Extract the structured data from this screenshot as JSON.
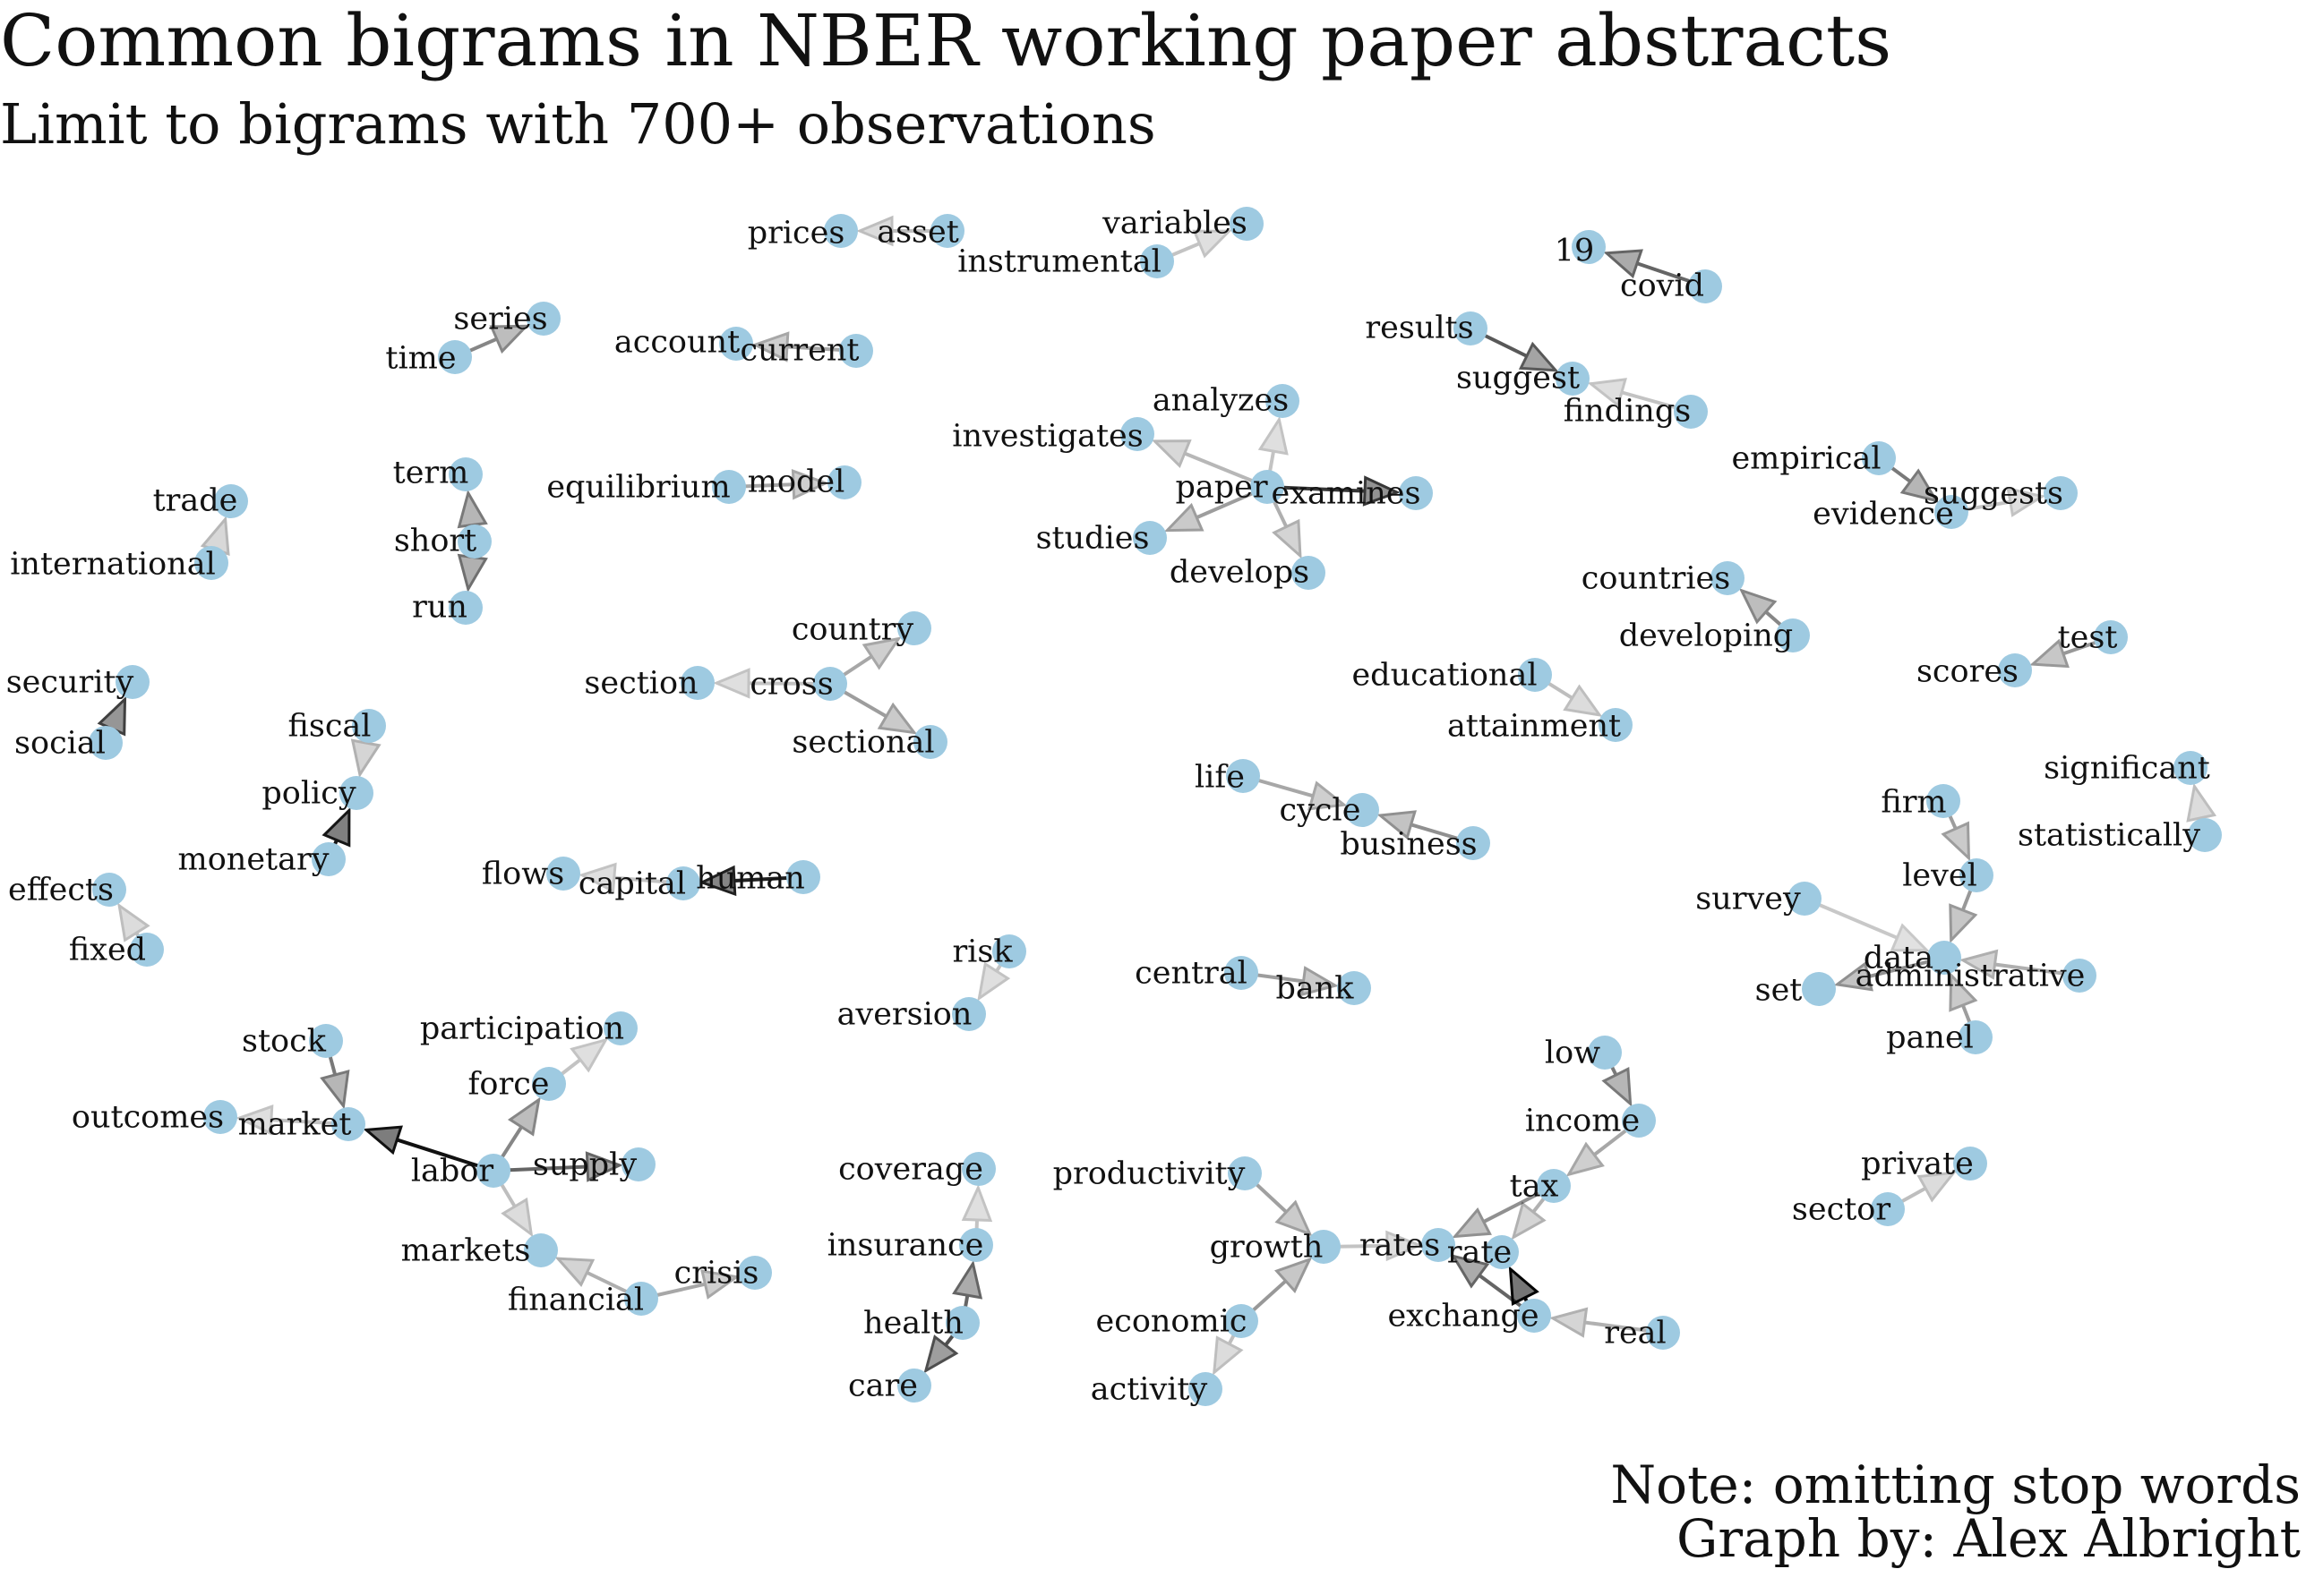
{
  "title": "Common bigrams in NBER working paper abstracts",
  "subtitle": "Limit to bigrams with 700+ observations",
  "note": [
    "Note: omitting stop words",
    "Graph by: Alex Albright"
  ],
  "colors": {
    "node": "#9ecae1",
    "edge": "#000000"
  },
  "nodes": [
    {
      "id": "prices",
      "label": "prices"
    },
    {
      "id": "asset",
      "label": "asset"
    },
    {
      "id": "variables",
      "label": "variables"
    },
    {
      "id": "instrumental",
      "label": "instrumental"
    },
    {
      "id": "19",
      "label": "19"
    },
    {
      "id": "covid",
      "label": "covid"
    },
    {
      "id": "series",
      "label": "series"
    },
    {
      "id": "time",
      "label": "time"
    },
    {
      "id": "account",
      "label": "account"
    },
    {
      "id": "current",
      "label": "current"
    },
    {
      "id": "results",
      "label": "results"
    },
    {
      "id": "suggest",
      "label": "suggest"
    },
    {
      "id": "findings",
      "label": "findings"
    },
    {
      "id": "analyzes",
      "label": "analyzes"
    },
    {
      "id": "investigates",
      "label": "investigates"
    },
    {
      "id": "paper",
      "label": "paper"
    },
    {
      "id": "examines",
      "label": "examines"
    },
    {
      "id": "studies",
      "label": "studies"
    },
    {
      "id": "develops",
      "label": "develops"
    },
    {
      "id": "empirical",
      "label": "empirical"
    },
    {
      "id": "evidence",
      "label": "evidence"
    },
    {
      "id": "suggests",
      "label": "suggests"
    },
    {
      "id": "term",
      "label": "term"
    },
    {
      "id": "short",
      "label": "short"
    },
    {
      "id": "run",
      "label": "run"
    },
    {
      "id": "trade",
      "label": "trade"
    },
    {
      "id": "international",
      "label": "international"
    },
    {
      "id": "equilibrium",
      "label": "equilibrium"
    },
    {
      "id": "model",
      "label": "model"
    },
    {
      "id": "countries",
      "label": "countries"
    },
    {
      "id": "developing",
      "label": "developing"
    },
    {
      "id": "test",
      "label": "test"
    },
    {
      "id": "scores",
      "label": "scores"
    },
    {
      "id": "country",
      "label": "country"
    },
    {
      "id": "section",
      "label": "section"
    },
    {
      "id": "cross",
      "label": "cross"
    },
    {
      "id": "sectional",
      "label": "sectional"
    },
    {
      "id": "educational",
      "label": "educational"
    },
    {
      "id": "attainment",
      "label": "attainment"
    },
    {
      "id": "security",
      "label": "security"
    },
    {
      "id": "social",
      "label": "social"
    },
    {
      "id": "fiscal",
      "label": "fiscal"
    },
    {
      "id": "policy",
      "label": "policy"
    },
    {
      "id": "monetary",
      "label": "monetary"
    },
    {
      "id": "significant",
      "label": "significant"
    },
    {
      "id": "statistically",
      "label": "statistically"
    },
    {
      "id": "life",
      "label": "life"
    },
    {
      "id": "cycle",
      "label": "cycle"
    },
    {
      "id": "business",
      "label": "business"
    },
    {
      "id": "firm",
      "label": "firm"
    },
    {
      "id": "level",
      "label": "level"
    },
    {
      "id": "survey",
      "label": "survey"
    },
    {
      "id": "data",
      "label": "data"
    },
    {
      "id": "administrative",
      "label": "administrative"
    },
    {
      "id": "set",
      "label": "set"
    },
    {
      "id": "panel",
      "label": "panel"
    },
    {
      "id": "effects",
      "label": "effects"
    },
    {
      "id": "fixed",
      "label": "fixed"
    },
    {
      "id": "flows",
      "label": "flows"
    },
    {
      "id": "capital",
      "label": "capital"
    },
    {
      "id": "human",
      "label": "human"
    },
    {
      "id": "risk",
      "label": "risk"
    },
    {
      "id": "aversion",
      "label": "aversion"
    },
    {
      "id": "central",
      "label": "central"
    },
    {
      "id": "bank",
      "label": "bank"
    },
    {
      "id": "stock",
      "label": "stock"
    },
    {
      "id": "participation",
      "label": "participation"
    },
    {
      "id": "force",
      "label": "force"
    },
    {
      "id": "outcomes",
      "label": "outcomes"
    },
    {
      "id": "market",
      "label": "market"
    },
    {
      "id": "labor",
      "label": "labor"
    },
    {
      "id": "supply",
      "label": "supply"
    },
    {
      "id": "markets",
      "label": "markets"
    },
    {
      "id": "financial",
      "label": "financial"
    },
    {
      "id": "crisis",
      "label": "crisis"
    },
    {
      "id": "low",
      "label": "low"
    },
    {
      "id": "income",
      "label": "income"
    },
    {
      "id": "tax",
      "label": "tax"
    },
    {
      "id": "rates",
      "label": "rates"
    },
    {
      "id": "rate",
      "label": "rate"
    },
    {
      "id": "exchange",
      "label": "exchange"
    },
    {
      "id": "real",
      "label": "real"
    },
    {
      "id": "coverage",
      "label": "coverage"
    },
    {
      "id": "insurance",
      "label": "insurance"
    },
    {
      "id": "health",
      "label": "health"
    },
    {
      "id": "care",
      "label": "care"
    },
    {
      "id": "productivity",
      "label": "productivity"
    },
    {
      "id": "growth",
      "label": "growth"
    },
    {
      "id": "economic",
      "label": "economic"
    },
    {
      "id": "activity",
      "label": "activity"
    },
    {
      "id": "private",
      "label": "private"
    },
    {
      "id": "sector",
      "label": "sector"
    }
  ],
  "edges": [
    {
      "from": "asset",
      "to": "prices",
      "w": 0.15
    },
    {
      "from": "instrumental",
      "to": "variables",
      "w": 0.12
    },
    {
      "from": "covid",
      "to": "19",
      "w": 0.55
    },
    {
      "from": "time",
      "to": "series",
      "w": 0.4
    },
    {
      "from": "current",
      "to": "account",
      "w": 0.25
    },
    {
      "from": "results",
      "to": "suggest",
      "w": 0.6
    },
    {
      "from": "findings",
      "to": "suggest",
      "w": 0.12
    },
    {
      "from": "paper",
      "to": "examines",
      "w": 0.75
    },
    {
      "from": "paper",
      "to": "investigates",
      "w": 0.18
    },
    {
      "from": "paper",
      "to": "analyzes",
      "w": 0.12
    },
    {
      "from": "paper",
      "to": "studies",
      "w": 0.3
    },
    {
      "from": "paper",
      "to": "develops",
      "w": 0.22
    },
    {
      "from": "empirical",
      "to": "evidence",
      "w": 0.45
    },
    {
      "from": "evidence",
      "to": "suggests",
      "w": 0.12
    },
    {
      "from": "short",
      "to": "term",
      "w": 0.45
    },
    {
      "from": "short",
      "to": "run",
      "w": 0.5
    },
    {
      "from": "international",
      "to": "trade",
      "w": 0.18
    },
    {
      "from": "equilibrium",
      "to": "model",
      "w": 0.25
    },
    {
      "from": "developing",
      "to": "countries",
      "w": 0.4
    },
    {
      "from": "test",
      "to": "scores",
      "w": 0.32
    },
    {
      "from": "cross",
      "to": "country",
      "w": 0.25
    },
    {
      "from": "cross",
      "to": "section",
      "w": 0.12
    },
    {
      "from": "cross",
      "to": "sectional",
      "w": 0.3
    },
    {
      "from": "educational",
      "to": "attainment",
      "w": 0.15
    },
    {
      "from": "social",
      "to": "security",
      "w": 0.72
    },
    {
      "from": "fiscal",
      "to": "policy",
      "w": 0.2
    },
    {
      "from": "monetary",
      "to": "policy",
      "w": 0.9
    },
    {
      "from": "statistically",
      "to": "significant",
      "w": 0.15
    },
    {
      "from": "life",
      "to": "cycle",
      "w": 0.25
    },
    {
      "from": "business",
      "to": "cycle",
      "w": 0.35
    },
    {
      "from": "firm",
      "to": "level",
      "w": 0.3
    },
    {
      "from": "level",
      "to": "data",
      "w": 0.32
    },
    {
      "from": "survey",
      "to": "data",
      "w": 0.1
    },
    {
      "from": "administrative",
      "to": "data",
      "w": 0.22
    },
    {
      "from": "panel",
      "to": "data",
      "w": 0.3
    },
    {
      "from": "data",
      "to": "set",
      "w": 0.35
    },
    {
      "from": "fixed",
      "to": "effects",
      "w": 0.15
    },
    {
      "from": "capital",
      "to": "flows",
      "w": 0.12
    },
    {
      "from": "human",
      "to": "capital",
      "w": 0.85
    },
    {
      "from": "risk",
      "to": "aversion",
      "w": 0.12
    },
    {
      "from": "central",
      "to": "bank",
      "w": 0.3
    },
    {
      "from": "stock",
      "to": "market",
      "w": 0.45
    },
    {
      "from": "labor",
      "to": "market",
      "w": 0.92
    },
    {
      "from": "market",
      "to": "outcomes",
      "w": 0.12
    },
    {
      "from": "labor",
      "to": "force",
      "w": 0.4
    },
    {
      "from": "force",
      "to": "participation",
      "w": 0.12
    },
    {
      "from": "labor",
      "to": "supply",
      "w": 0.55
    },
    {
      "from": "labor",
      "to": "markets",
      "w": 0.15
    },
    {
      "from": "financial",
      "to": "markets",
      "w": 0.22
    },
    {
      "from": "financial",
      "to": "crisis",
      "w": 0.25
    },
    {
      "from": "low",
      "to": "income",
      "w": 0.45
    },
    {
      "from": "income",
      "to": "tax",
      "w": 0.25
    },
    {
      "from": "tax",
      "to": "rate",
      "w": 0.2
    },
    {
      "from": "tax",
      "to": "rates",
      "w": 0.35
    },
    {
      "from": "exchange",
      "to": "rate",
      "w": 0.98
    },
    {
      "from": "exchange",
      "to": "rates",
      "w": 0.55
    },
    {
      "from": "real",
      "to": "exchange",
      "w": 0.2
    },
    {
      "from": "insurance",
      "to": "coverage",
      "w": 0.12
    },
    {
      "from": "health",
      "to": "insurance",
      "w": 0.55
    },
    {
      "from": "health",
      "to": "care",
      "w": 0.65
    },
    {
      "from": "productivity",
      "to": "growth",
      "w": 0.28
    },
    {
      "from": "economic",
      "to": "growth",
      "w": 0.32
    },
    {
      "from": "economic",
      "to": "activity",
      "w": 0.15
    },
    {
      "from": "growth",
      "to": "rates",
      "w": 0.12
    },
    {
      "from": "sector",
      "to": "private",
      "w": 0.15
    }
  ]
}
